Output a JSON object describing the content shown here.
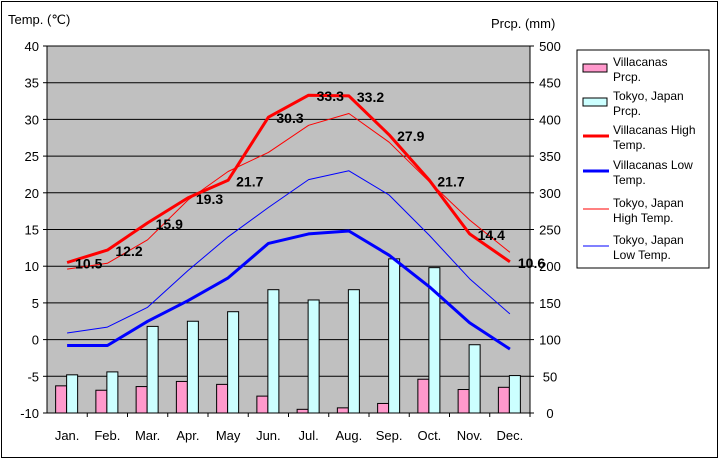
{
  "chart_data": {
    "type": "bar+line",
    "left_axis_title": "Temp. (℃)",
    "right_axis_title": "Prcp. (mm)",
    "left_ylim": [
      -10,
      40
    ],
    "right_ylim": [
      0,
      500
    ],
    "left_ticks": [
      "40",
      "35",
      "30",
      "25",
      "20",
      "15",
      "10",
      "5",
      "0",
      "-5",
      "-10"
    ],
    "right_ticks": [
      "500",
      "450",
      "400",
      "350",
      "300",
      "250",
      "200",
      "150",
      "100",
      "50",
      "0"
    ],
    "left_tick_values": [
      40,
      35,
      30,
      25,
      20,
      15,
      10,
      5,
      0,
      -5,
      -10
    ],
    "right_tick_values": [
      500,
      450,
      400,
      350,
      300,
      250,
      200,
      150,
      100,
      50,
      0
    ],
    "categories": [
      "Jan.",
      "Feb.",
      "Mar.",
      "Apr.",
      "May",
      "Jun.",
      "Jul.",
      "Aug.",
      "Sep.",
      "Oct.",
      "Nov.",
      "Dec."
    ],
    "bars": [
      {
        "name": "Villacanas Prcp.",
        "color": "#ff99cc",
        "values": [
          37,
          31,
          36,
          43,
          39,
          23,
          5,
          7,
          13,
          46,
          32,
          35
        ]
      },
      {
        "name": "Tokyo, Japan Prcp.",
        "color": "#ccffff",
        "values": [
          52,
          56,
          118,
          125,
          138,
          168,
          154,
          168,
          210,
          198,
          93,
          51
        ]
      }
    ],
    "lines": [
      {
        "name": "Villacanas High Temp.",
        "color": "#ff0000",
        "width": 3,
        "values": [
          10.5,
          12.2,
          15.9,
          19.3,
          21.7,
          30.3,
          33.3,
          33.2,
          27.9,
          21.7,
          14.4,
          10.6
        ],
        "labels": [
          "10.5",
          "12.2",
          "15.9",
          "19.3",
          "21.7",
          "30.3",
          "33.3",
          "33.2",
          "27.9",
          "21.7",
          "14.4",
          "10.6"
        ]
      },
      {
        "name": "Villacanas Low Temp.",
        "color": "#0000ff",
        "width": 3,
        "values": [
          -0.8,
          -0.8,
          2.5,
          5.3,
          8.4,
          13.1,
          14.4,
          14.8,
          11.5,
          7.2,
          2.3,
          -1.3
        ]
      },
      {
        "name": "Tokyo, Japan High Temp.",
        "color": "#ff0000",
        "width": 1,
        "values": [
          9.6,
          10.4,
          13.6,
          19.0,
          22.9,
          25.5,
          29.2,
          30.8,
          26.9,
          21.5,
          16.3,
          11.9
        ]
      },
      {
        "name": "Tokyo, Japan Low Temp.",
        "color": "#0000ff",
        "width": 1,
        "values": [
          0.9,
          1.7,
          4.4,
          9.4,
          14.0,
          18.0,
          21.8,
          23.0,
          19.7,
          14.2,
          8.3,
          3.5
        ]
      }
    ],
    "legend": [
      {
        "label": "Villacanas Prcp.",
        "kind": "box",
        "color": "#ff99cc"
      },
      {
        "label": "Tokyo, Japan Prcp.",
        "kind": "box",
        "color": "#ccffff"
      },
      {
        "label": "Villacanas High Temp.",
        "kind": "line",
        "color": "#ff0000",
        "width": 3
      },
      {
        "label": "Villacanas Low Temp.",
        "kind": "line",
        "color": "#0000ff",
        "width": 3
      },
      {
        "label": "Tokyo, Japan High Temp.",
        "kind": "line",
        "color": "#ff0000",
        "width": 1
      },
      {
        "label": "Tokyo, Japan Low Temp.",
        "kind": "line",
        "color": "#0000ff",
        "width": 1
      }
    ],
    "grid": true,
    "legend_position": "right",
    "plot_background": "#c0c0c0"
  }
}
